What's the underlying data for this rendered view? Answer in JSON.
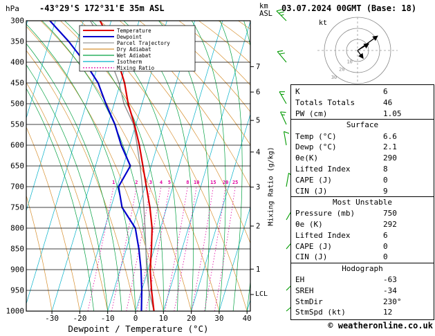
{
  "header": {
    "station": "-43°29'S 172°31'E 35m ASL",
    "datetime": "03.07.2024 00GMT (Base: 18)"
  },
  "axes": {
    "pressure_unit": "hPa",
    "pressure_ticks": [
      300,
      350,
      400,
      450,
      500,
      550,
      600,
      650,
      700,
      750,
      800,
      850,
      900,
      950,
      1000
    ],
    "km_unit_line1": "km",
    "km_unit_line2": "ASL",
    "km_ticks": [
      1,
      2,
      3,
      4,
      5,
      6,
      7
    ],
    "x_title": "Dewpoint / Temperature (°C)",
    "x_ticks": [
      -30,
      -20,
      -10,
      0,
      10,
      20,
      30,
      40
    ],
    "mixing_title": "Mixing Ratio (g/kg)",
    "lcl_label": "LCL"
  },
  "legend": [
    {
      "label": "Temperature",
      "color": "#dd0000",
      "style": "solid"
    },
    {
      "label": "Dewpoint",
      "color": "#0000cc",
      "style": "solid"
    },
    {
      "label": "Parcel Trajectory",
      "color": "#999999",
      "style": "solid"
    },
    {
      "label": "Dry Adiabat",
      "color": "#d79030",
      "style": "solid"
    },
    {
      "label": "Wet Adiabat",
      "color": "#00a040",
      "style": "solid"
    },
    {
      "label": "Isotherm",
      "color": "#00b0c8",
      "style": "solid"
    },
    {
      "label": "Mixing Ratio",
      "color": "#e000a0",
      "style": "dotted"
    }
  ],
  "colors": {
    "temperature": "#dd0000",
    "dewpoint": "#0000cc",
    "parcel": "#909090",
    "dry_adiabat": "#d79030",
    "wet_adiabat": "#00a040",
    "isotherm": "#00b0c8",
    "mixing_ratio": "#e000a0",
    "wind_barb": "#009900",
    "grid": "#000000",
    "hodograph_ring": "#888888"
  },
  "chart_data": {
    "type": "skewt_log_p_sounding",
    "pressure_hpa": [
      300,
      350,
      400,
      450,
      500,
      550,
      600,
      650,
      700,
      750,
      800,
      850,
      900,
      950,
      1000
    ],
    "temperature_c": [
      -44,
      -38,
      -33,
      -28.5,
      -25,
      -20.5,
      -16.5,
      -13,
      -9.5,
      -6,
      -3,
      -1,
      0.8,
      3.5,
      6.6
    ],
    "dewpoint_c": [
      -62,
      -53,
      -45,
      -38,
      -33,
      -27.5,
      -23,
      -17.5,
      -19.5,
      -16,
      -9,
      -5.5,
      -2.5,
      0,
      2.1
    ],
    "parcel_c": [
      -47.5,
      -41,
      -35.5,
      -30.5,
      -26.5,
      -20.8,
      -17.3,
      -14,
      -11,
      -8.2,
      -5.5,
      -3,
      -0.5,
      2.5,
      6.6
    ],
    "x_axis_range_c": [
      -38,
      41.5
    ],
    "pressure_range_hpa": [
      300,
      1000
    ],
    "mixing_ratio_lines_gkg": [
      1,
      2,
      3,
      4,
      5,
      8,
      10,
      15,
      20,
      25
    ],
    "lcl_pressure_hpa": 960,
    "winds": [
      {
        "p": 300,
        "dir": 315,
        "spd": 25
      },
      {
        "p": 400,
        "dir": 320,
        "spd": 20
      },
      {
        "p": 500,
        "dir": 330,
        "spd": 15
      },
      {
        "p": 550,
        "dir": 335,
        "spd": 15
      },
      {
        "p": 600,
        "dir": 350,
        "spd": 10
      },
      {
        "p": 700,
        "dir": 10,
        "spd": 10
      },
      {
        "p": 780,
        "dir": 30,
        "spd": 10
      },
      {
        "p": 850,
        "dir": 40,
        "spd": 12
      },
      {
        "p": 950,
        "dir": 45,
        "spd": 12
      },
      {
        "p": 1000,
        "dir": 50,
        "spd": 8
      }
    ],
    "hodograph": {
      "unit": "kt",
      "rings": [
        10,
        20,
        30
      ],
      "arrows_uv_kt": [
        {
          "u": 18,
          "v": 13
        },
        {
          "u": 10,
          "v": 6
        },
        {
          "u": 5,
          "v": -7
        }
      ]
    }
  },
  "panel": {
    "sections": [
      {
        "header": null,
        "rows": [
          [
            "K",
            "6"
          ],
          [
            "Totals Totals",
            "46"
          ],
          [
            "PW (cm)",
            "1.05"
          ]
        ]
      },
      {
        "header": "Surface",
        "rows": [
          [
            "Temp (°C)",
            "6.6"
          ],
          [
            "Dewp (°C)",
            "2.1"
          ],
          [
            "θe(K)",
            "290"
          ],
          [
            "Lifted Index",
            "8"
          ],
          [
            "CAPE (J)",
            "0"
          ],
          [
            "CIN (J)",
            "9"
          ]
        ]
      },
      {
        "header": "Most Unstable",
        "rows": [
          [
            "Pressure (mb)",
            "750"
          ],
          [
            "θe (K)",
            "292"
          ],
          [
            "Lifted Index",
            "6"
          ],
          [
            "CAPE (J)",
            "0"
          ],
          [
            "CIN (J)",
            "0"
          ]
        ]
      },
      {
        "header": "Hodograph",
        "rows": [
          [
            "EH",
            "-63"
          ],
          [
            "SREH",
            "-34"
          ],
          [
            "StmDir",
            "230°"
          ],
          [
            "StmSpd (kt)",
            "12"
          ]
        ]
      }
    ]
  },
  "copyright": "© weatheronline.co.uk"
}
